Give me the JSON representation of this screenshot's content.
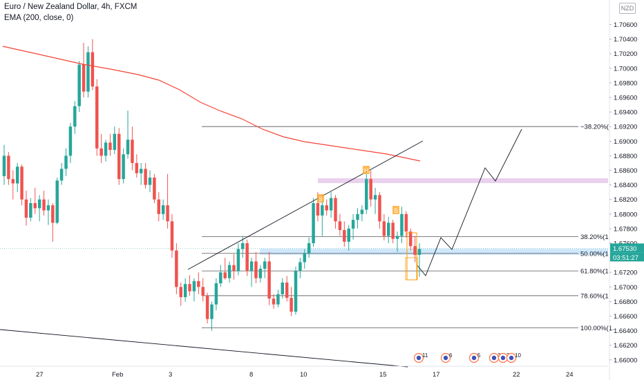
{
  "header": {
    "title": "Euro / New Zealand Dollar, 4h, FXCM",
    "indicator": "EMA (200, close, 0)"
  },
  "currency_badge": "NZD",
  "price_badge": {
    "price": "1.67530",
    "countdown": "03:51:27"
  },
  "colors": {
    "up": "#26a69a",
    "down": "#ef5350",
    "ema": "#f44336",
    "fib": "#000000",
    "zone": "#e1bee7",
    "current_zone": "#bbdefb"
  },
  "chart_data": {
    "type": "candlestick",
    "title": "Euro / New Zealand Dollar, 4h, FXCM",
    "xlabel": "",
    "ylabel": "",
    "x_ticks": [
      "27",
      "Feb",
      "3",
      "8",
      "10",
      "15",
      "17",
      "22",
      "24"
    ],
    "y_ticks": [
      "1.70600",
      "1.70400",
      "1.70200",
      "1.70000",
      "1.69800",
      "1.69600",
      "1.69400",
      "1.69200",
      "1.69000",
      "1.68800",
      "1.68600",
      "1.68400",
      "1.68200",
      "1.68000",
      "1.67800",
      "1.67600",
      "1.67400",
      "1.67200",
      "1.67000",
      "1.66800",
      "1.66600",
      "1.66400",
      "1.66200",
      "1.66000"
    ],
    "ylim": [
      1.66,
      1.7082
    ],
    "grid": false,
    "fib_levels": [
      {
        "label": "−38.20%(",
        "price": 1.692
      },
      {
        "label": "38.20%(1.",
        "price": 1.6769
      },
      {
        "label": "50.00%(1.",
        "price": 1.6746
      },
      {
        "label": "61.80%(1.",
        "price": 1.6722
      },
      {
        "label": "78.60%(1.",
        "price": 1.6688
      },
      {
        "label": "100.00%(1.",
        "price": 1.6644
      }
    ],
    "pattern_labels": [
      "S",
      "H",
      "S"
    ],
    "event_markers": [
      "11",
      "6",
      "5",
      "3",
      "3",
      "10"
    ],
    "current_price": 1.6753
  }
}
